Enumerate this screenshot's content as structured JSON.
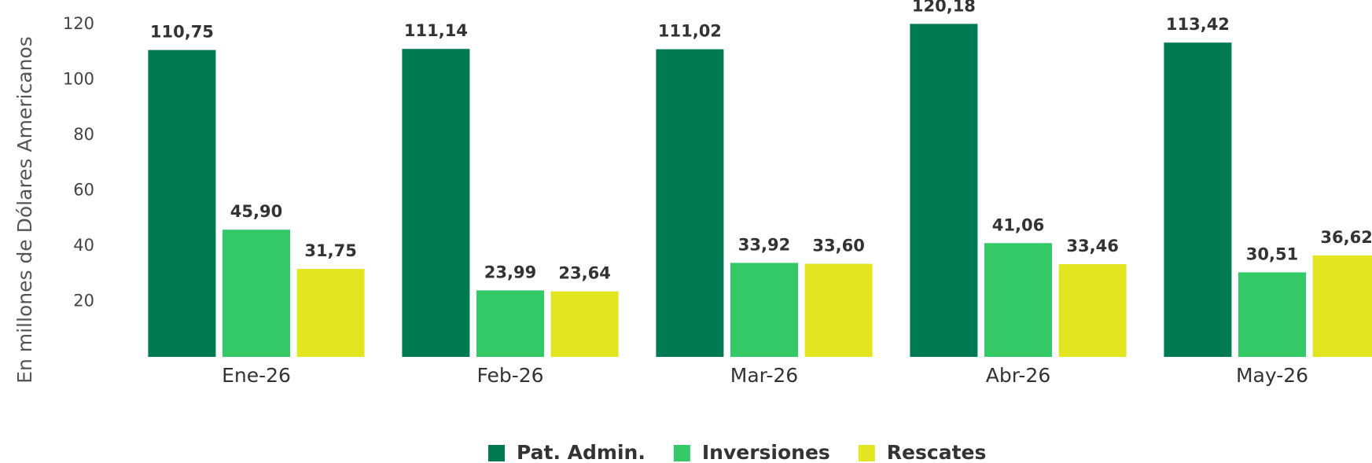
{
  "chart_data": {
    "type": "bar",
    "y_label": "En millones de Dólares Americanos",
    "categories": [
      "Ene-26",
      "Feb-26",
      "Mar-26",
      "Abr-26",
      "May-26"
    ],
    "series": [
      {
        "name": "Pat. Admin.",
        "color": "#007a53",
        "values": [
          110.75,
          111.14,
          111.02,
          120.18,
          113.42
        ],
        "value_labels": [
          "110,75",
          "111,14",
          "111,02",
          "120,18",
          "113,42"
        ]
      },
      {
        "name": "Inversiones",
        "color": "#33c966",
        "values": [
          45.9,
          23.99,
          33.92,
          41.06,
          30.51
        ],
        "value_labels": [
          "45,90",
          "23,99",
          "33,92",
          "41,06",
          "30,51"
        ]
      },
      {
        "name": "Rescates",
        "color": "#e2e621",
        "values": [
          31.75,
          23.64,
          33.6,
          33.46,
          36.62
        ],
        "value_labels": [
          "31,75",
          "23,64",
          "33,60",
          "33,46",
          "36,62"
        ]
      }
    ],
    "ylim": [
      0,
      120
    ],
    "yticks": [
      20,
      40,
      60,
      80,
      100,
      120
    ],
    "grid": false,
    "legend": "bottom"
  }
}
